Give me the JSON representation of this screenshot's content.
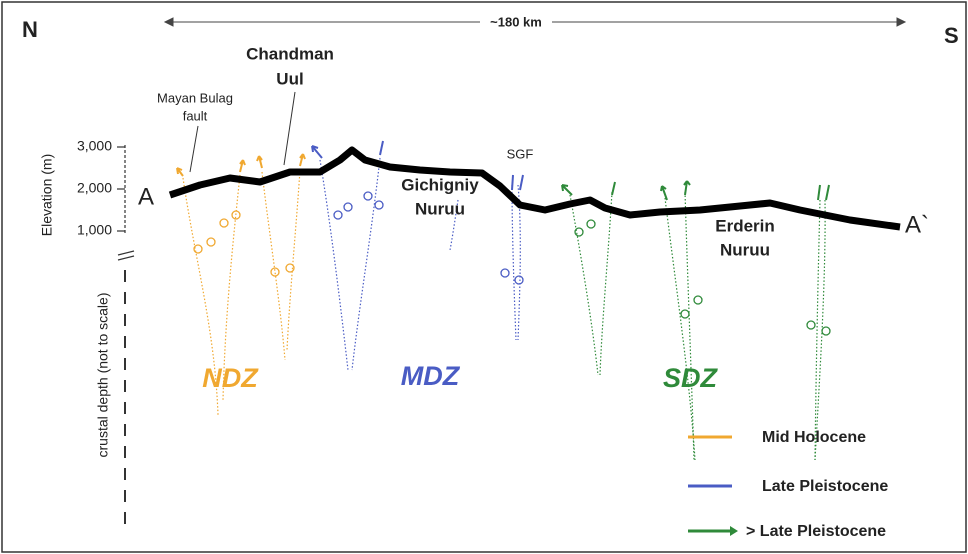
{
  "compass": {
    "north": "N",
    "south": "S"
  },
  "scale": "~180 km",
  "axis": {
    "title": "Elevation (m)",
    "ticks": [
      "3,000",
      "2,000",
      "1,000"
    ],
    "depth_label": "crustal depth (not to scale)"
  },
  "profile": {
    "start": "A",
    "end": "A`"
  },
  "places": [
    {
      "lines": [
        "Chandman",
        "Uul"
      ]
    },
    {
      "lines": [
        "Mayan Bulag",
        "fault"
      ]
    },
    {
      "lines": [
        "SGF"
      ]
    },
    {
      "lines": [
        "Gichigniy",
        "Nuruu"
      ]
    },
    {
      "lines": [
        "Erderin",
        "Nuruu"
      ]
    }
  ],
  "zones": [
    {
      "name": "NDZ",
      "color": "#f0a830"
    },
    {
      "name": "MDZ",
      "color": "#4a5cc4"
    },
    {
      "name": "SDZ",
      "color": "#2f8a3a"
    }
  ],
  "legend": [
    {
      "name": "Mid Holocene",
      "color": "#f0a830"
    },
    {
      "name": "Late Pleistocene",
      "color": "#4a5cc4"
    },
    {
      "name": "> Late Pleistocene",
      "color": "#2f8a3a"
    }
  ]
}
